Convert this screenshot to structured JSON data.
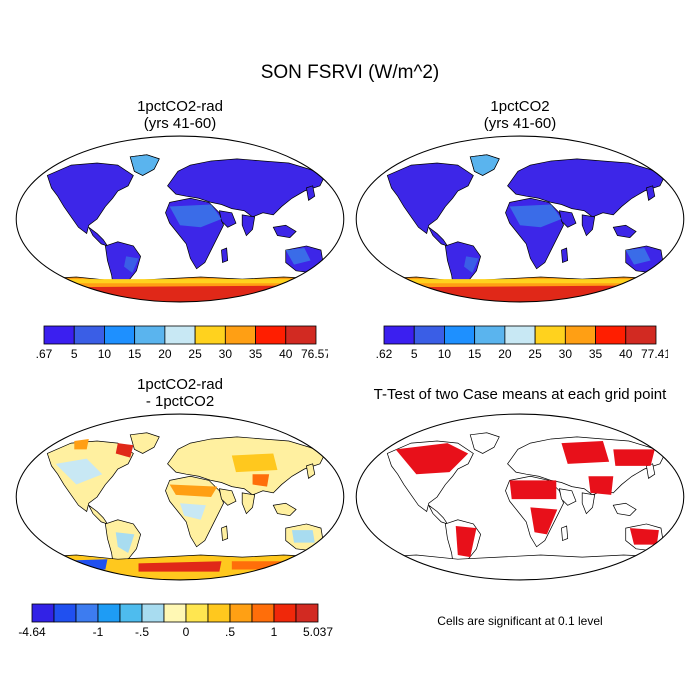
{
  "main_title": "SON FSRVI (W/m^2)",
  "panels": [
    {
      "title_line1": "1pctCO2-rad",
      "title_line2": "(yrs 41-60)",
      "colors": [
        "#3b1ff0",
        "#3a5ee6",
        "#1e90ff",
        "#5ab4ee",
        "#c8e8f4",
        "#ffd21e",
        "#ff9f14",
        "#ff1e00",
        "#d22a22"
      ],
      "labels": [
        ".67",
        "5",
        "10",
        "15",
        "20",
        "25",
        "30",
        "35",
        "40",
        "76.57"
      ]
    },
    {
      "title_line1": "1pctCO2",
      "title_line2": "(yrs 41-60)",
      "colors": [
        "#3b1ff0",
        "#3a5ee6",
        "#1e90ff",
        "#5ab4ee",
        "#c8e8f4",
        "#ffd21e",
        "#ff9f14",
        "#ff1e00",
        "#d22a22"
      ],
      "labels": [
        ".62",
        "5",
        "10",
        "15",
        "20",
        "25",
        "30",
        "35",
        "40",
        "77.41"
      ]
    },
    {
      "title_line1": "1pctCO2-rad",
      "title_line2": "- 1pctCO2",
      "colors": [
        "#3222e6",
        "#2050f0",
        "#3d7cf0",
        "#1e9cf5",
        "#4ebcee",
        "#a8dcf0",
        "#fff8b4",
        "#ffe650",
        "#ffc81e",
        "#ffa014",
        "#ff6e0a",
        "#f0280a",
        "#d22a22"
      ],
      "labels": [
        "-4.64",
        "-1",
        "-.5",
        "0",
        ".5",
        "1",
        "5.037"
      ]
    },
    {
      "title_line1": "T-Test of two Case means at each grid point",
      "note": "Cells are significant at 0.1 level"
    }
  ]
}
